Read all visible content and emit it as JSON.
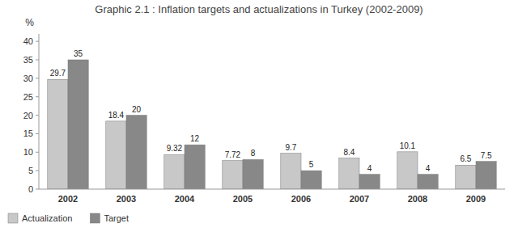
{
  "chart_data": {
    "type": "bar",
    "title": "Graphic 2.1 : Inflation targets and actualizations in Turkey (2002-2009)",
    "y_label": "%",
    "categories": [
      "2002",
      "2003",
      "2004",
      "2005",
      "2006",
      "2007",
      "2008",
      "2009"
    ],
    "series": [
      {
        "name": "Actualization",
        "color": "#c8c8c8",
        "values": [
          29.7,
          18.4,
          9.32,
          7.72,
          9.7,
          8.4,
          10.1,
          6.5
        ]
      },
      {
        "name": "Target",
        "color": "#888888",
        "values": [
          35,
          20,
          12,
          8,
          5,
          4,
          4,
          7.5
        ]
      }
    ],
    "ylim": [
      0,
      42
    ],
    "yticks": [
      0,
      5,
      10,
      15,
      20,
      25,
      30,
      35,
      40
    ],
    "data_labels": true,
    "grid": false,
    "legend": "lower left"
  }
}
